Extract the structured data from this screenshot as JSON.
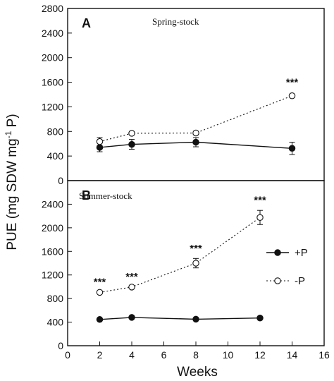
{
  "chart_data": {
    "type": "line",
    "ylabel_text": "PUE (mg SDW mg",
    "ylabel_sup": "-1",
    "ylabel_tail": " P)",
    "xlabel": "Weeks",
    "xlim": [
      0,
      16
    ],
    "x_ticks": [
      "0",
      "2",
      "4",
      "6",
      "8",
      "10",
      "12",
      "14",
      "16"
    ],
    "grid": false,
    "legend": {
      "placement": "right",
      "entries": [
        {
          "name": "+P",
          "marker": "filled-circle",
          "line": "solid"
        },
        {
          "name": "-P",
          "marker": "open-circle",
          "line": "dotted"
        }
      ]
    },
    "panels": [
      {
        "letter": "A",
        "title": "Spring-stock",
        "ylim": [
          0,
          2800
        ],
        "y_ticks": [
          "0",
          "400",
          "800",
          "1200",
          "1600",
          "2000",
          "2400",
          "2800"
        ],
        "x": [
          2,
          4,
          8,
          14
        ],
        "series": [
          {
            "name": "+P",
            "values": [
              540,
              590,
              625,
              525
            ],
            "errors": [
              70,
              80,
              75,
              100
            ]
          },
          {
            "name": "-P",
            "values": [
              635,
              770,
              775,
              1380
            ],
            "errors": [
              65,
              25,
              25,
              25
            ]
          }
        ],
        "annotations": [
          {
            "x": 14,
            "y": 1600,
            "text": "***"
          }
        ]
      },
      {
        "letter": "B",
        "title": "Summer-stock",
        "ylim": [
          0,
          2800
        ],
        "y_ticks": [
          "0",
          "400",
          "800",
          "1200",
          "1600",
          "2000",
          "2400"
        ],
        "x": [
          2,
          4,
          8,
          12
        ],
        "series": [
          {
            "name": "+P",
            "values": [
              445,
              480,
              450,
              470
            ],
            "errors": [
              20,
              20,
              20,
              20
            ]
          },
          {
            "name": "-P",
            "values": [
              905,
              995,
              1400,
              2175
            ],
            "errors": [
              25,
              25,
              80,
              120
            ]
          }
        ],
        "annotations": [
          {
            "x": 2,
            "y": 1080,
            "text": "***"
          },
          {
            "x": 4,
            "y": 1170,
            "text": "***"
          },
          {
            "x": 8,
            "y": 1650,
            "text": "***"
          },
          {
            "x": 12,
            "y": 2470,
            "text": "***"
          }
        ]
      }
    ]
  }
}
